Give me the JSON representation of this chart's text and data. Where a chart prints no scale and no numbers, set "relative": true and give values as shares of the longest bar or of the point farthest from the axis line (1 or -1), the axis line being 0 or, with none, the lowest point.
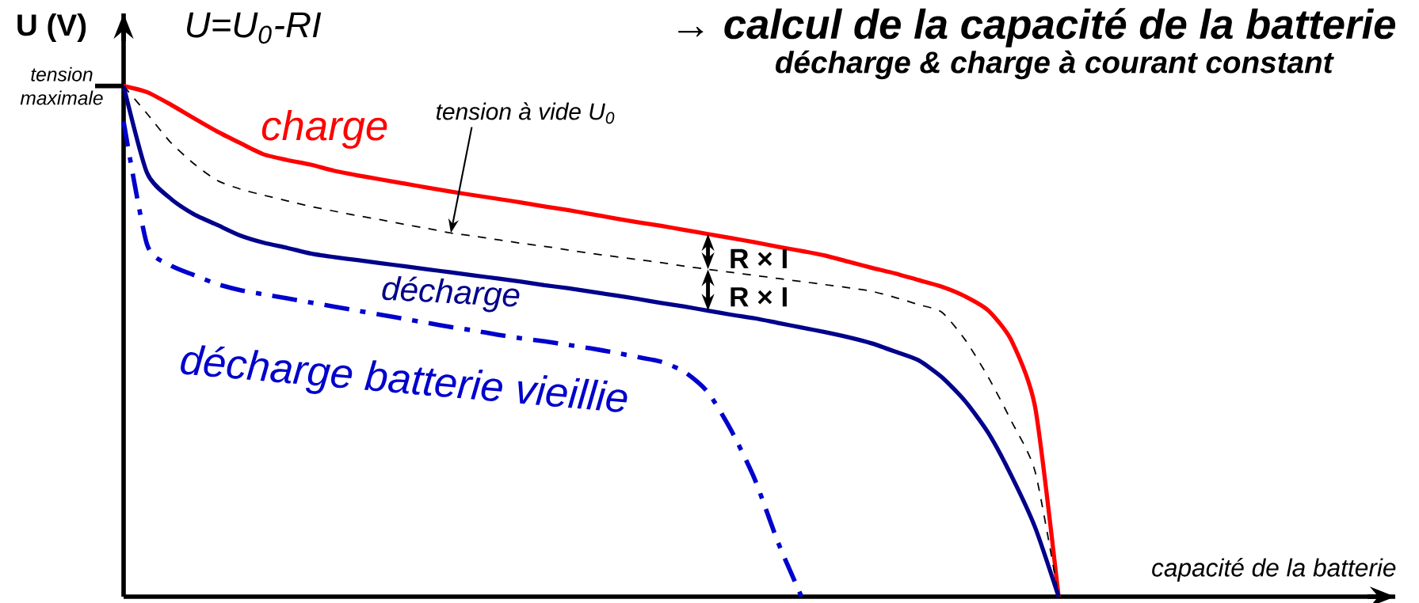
{
  "chart_data": {
    "type": "line",
    "relative": true,
    "title": "→ calcul de la capacité de la batterie",
    "subtitle": "décharge & charge à courant constant",
    "xlabel": "capacité de la batterie",
    "ylabel": "U (V)",
    "categories": [
      null,
      null,
      null,
      null,
      null,
      null,
      null,
      null,
      null,
      null,
      null,
      null,
      null,
      null,
      null,
      null,
      null,
      null,
      null,
      null,
      null,
      null,
      null,
      null,
      null,
      null,
      null,
      null,
      null,
      null,
      null,
      null,
      null,
      null,
      null,
      null,
      null,
      null,
      null,
      null,
      null
    ],
    "annotations": [
      "U=U$_{0}$-RI",
      "tension maximale",
      "R × I",
      "R × I"
    ],
    "series": [
      {
        "name": "charge",
        "color": "#ff0000",
        "line_style": "solid",
        "values": [
          1.0,
          0.988,
          0.964,
          0.937,
          0.911,
          0.888,
          0.866,
          0.855,
          0.846,
          0.834,
          0.825,
          0.817,
          0.809,
          0.801,
          0.793,
          0.786,
          0.779,
          0.772,
          0.764,
          0.757,
          0.749,
          0.741,
          0.733,
          0.726,
          0.718,
          0.71,
          0.702,
          0.694,
          0.685,
          0.677,
          0.668,
          0.656,
          0.644,
          0.633,
          0.62,
          0.607,
          0.588,
          0.56,
          0.5,
          0.37,
          0
        ]
      },
      {
        "name": "tension à vide U$_{0}$",
        "color": "#000000",
        "line_style": "dashed",
        "values": [
          1.0,
          0.946,
          0.89,
          0.848,
          0.815,
          0.798,
          0.786,
          0.775,
          0.764,
          0.755,
          0.746,
          0.738,
          0.729,
          0.721,
          0.712,
          0.706,
          0.699,
          0.692,
          0.686,
          0.679,
          0.672,
          0.666,
          0.66,
          0.654,
          0.647,
          0.641,
          0.635,
          0.629,
          0.623,
          0.617,
          0.611,
          0.605,
          0.598,
          0.586,
          0.572,
          0.557,
          0.503,
          0.429,
          0.342,
          0.244,
          0
        ]
      },
      {
        "name": "décharge",
        "color": "#00008b",
        "line_style": "solid",
        "values": [
          1.0,
          0.83,
          0.78,
          0.749,
          0.728,
          0.707,
          0.693,
          0.683,
          0.672,
          0.665,
          0.659,
          0.653,
          0.647,
          0.641,
          0.635,
          0.629,
          0.623,
          0.617,
          0.61,
          0.604,
          0.597,
          0.59,
          0.583,
          0.575,
          0.568,
          0.56,
          0.552,
          0.545,
          0.536,
          0.527,
          0.518,
          0.508,
          0.496,
          0.48,
          0.463,
          0.43,
          0.383,
          0.32,
          0.235,
          0.135,
          0
        ]
      },
      {
        "name": "décharge batterie vieillie",
        "color": "#0000cc",
        "line_style": "dashdotted",
        "values": [
          0.93,
          0.69,
          0.649,
          0.63,
          0.612,
          0.6,
          0.592,
          0.584,
          0.576,
          0.568,
          0.56,
          0.552,
          0.544,
          0.536,
          0.528,
          0.521,
          0.513,
          0.506,
          0.5,
          0.493,
          0.486,
          0.478,
          0.469,
          0.46,
          0.44,
          0.4,
          0.325,
          0.23,
          0.106,
          0,
          null,
          null,
          null,
          null,
          null,
          null,
          null,
          null,
          null,
          null,
          null
        ]
      }
    ]
  }
}
